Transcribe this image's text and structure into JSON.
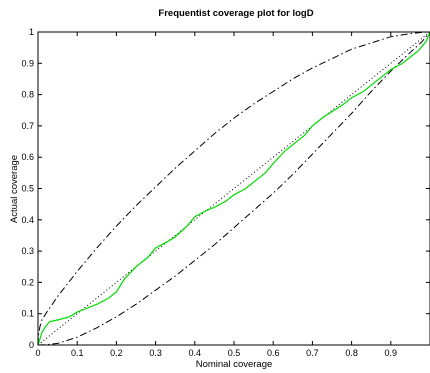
{
  "chart_data": {
    "type": "line",
    "title": "Frequentist coverage plot for logD",
    "xlabel": "Nominal coverage",
    "ylabel": "Actual coverage",
    "xlim": [
      0,
      1
    ],
    "ylim": [
      0,
      1
    ],
    "xticks": [
      "0",
      "0.1",
      "0.2",
      "0.3",
      "0.4",
      "0.5",
      "0.6",
      "0.7",
      "0.8",
      "0.9"
    ],
    "yticks": [
      "0",
      "0.1",
      "0.2",
      "0.3",
      "0.4",
      "0.5",
      "0.6",
      "0.7",
      "0.8",
      "0.9",
      "1"
    ],
    "grid": false,
    "legend": false,
    "series": [
      {
        "style": "dotted",
        "color": "#000000",
        "x": [
          0,
          1
        ],
        "y": [
          0,
          1
        ]
      },
      {
        "style": "dashdot",
        "color": "#000000",
        "x": [
          0,
          0.001,
          0.005,
          0.01,
          0.02,
          0.05,
          0.1,
          0.15,
          0.2,
          0.25,
          0.3,
          0.35,
          0.4,
          0.45,
          0.5,
          0.55,
          0.6,
          0.65,
          0.7,
          0.75,
          0.8,
          0.85,
          0.9,
          0.95,
          0.98,
          1.0
        ],
        "y": [
          0,
          0.03,
          0.06,
          0.08,
          0.1,
          0.155,
          0.235,
          0.31,
          0.38,
          0.445,
          0.505,
          0.565,
          0.62,
          0.675,
          0.725,
          0.77,
          0.81,
          0.85,
          0.885,
          0.915,
          0.945,
          0.965,
          0.985,
          0.995,
          0.999,
          1.0
        ]
      },
      {
        "style": "dashdot",
        "color": "#000000",
        "x": [
          0,
          0.02,
          0.05,
          0.1,
          0.15,
          0.2,
          0.25,
          0.3,
          0.35,
          0.4,
          0.45,
          0.5,
          0.55,
          0.6,
          0.65,
          0.7,
          0.75,
          0.8,
          0.85,
          0.9,
          0.95,
          0.98,
          0.99,
          1.0
        ],
        "y": [
          0,
          0.001,
          0.005,
          0.025,
          0.055,
          0.09,
          0.13,
          0.175,
          0.22,
          0.27,
          0.32,
          0.375,
          0.43,
          0.485,
          0.545,
          0.61,
          0.675,
          0.74,
          0.81,
          0.875,
          0.935,
          0.97,
          0.985,
          1.0
        ]
      },
      {
        "style": "solid",
        "color": "#00dd00",
        "x": [
          0,
          0.005,
          0.01,
          0.02,
          0.03,
          0.05,
          0.08,
          0.1,
          0.12,
          0.15,
          0.18,
          0.2,
          0.22,
          0.25,
          0.28,
          0.3,
          0.33,
          0.35,
          0.38,
          0.4,
          0.43,
          0.45,
          0.48,
          0.5,
          0.53,
          0.55,
          0.58,
          0.6,
          0.63,
          0.65,
          0.68,
          0.7,
          0.73,
          0.75,
          0.78,
          0.8,
          0.83,
          0.85,
          0.88,
          0.9,
          0.93,
          0.95,
          0.97,
          0.99,
          1.0
        ],
        "y": [
          0,
          0.02,
          0.04,
          0.06,
          0.075,
          0.08,
          0.09,
          0.105,
          0.115,
          0.13,
          0.15,
          0.17,
          0.21,
          0.25,
          0.28,
          0.31,
          0.33,
          0.345,
          0.38,
          0.41,
          0.43,
          0.44,
          0.46,
          0.48,
          0.5,
          0.52,
          0.55,
          0.58,
          0.62,
          0.64,
          0.67,
          0.7,
          0.73,
          0.745,
          0.77,
          0.79,
          0.81,
          0.83,
          0.86,
          0.88,
          0.9,
          0.92,
          0.94,
          0.97,
          1.0
        ]
      }
    ]
  }
}
